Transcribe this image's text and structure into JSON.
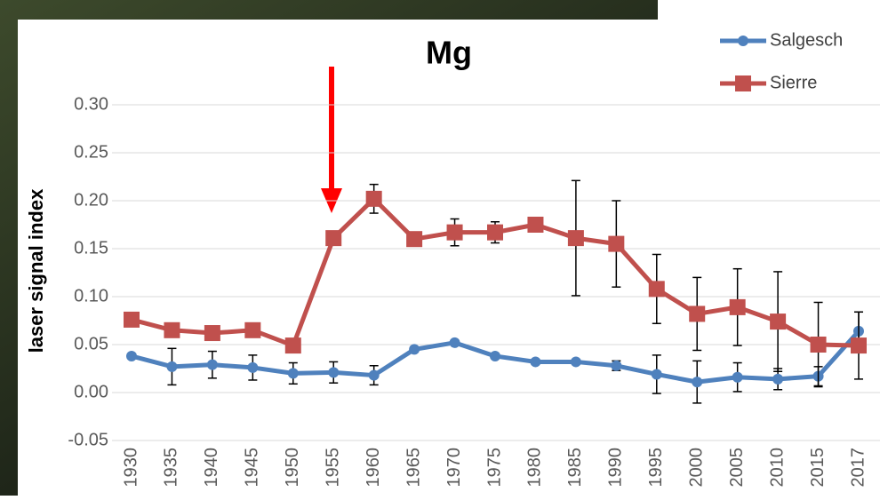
{
  "chart_data": {
    "type": "line",
    "title": "Mg",
    "y_label": "laser signal index",
    "categories": [
      "1930",
      "1935",
      "1940",
      "1945",
      "1950",
      "1955",
      "1960",
      "1965",
      "1970",
      "1975",
      "1980",
      "1985",
      "1990",
      "1995",
      "2000",
      "2005",
      "2010",
      "2015",
      "2017"
    ],
    "series": [
      {
        "name": "Salgesch",
        "color": "#4f81bd",
        "marker": "circle",
        "values": [
          0.038,
          0.027,
          0.029,
          0.026,
          0.02,
          0.021,
          0.018,
          0.045,
          0.052,
          0.038,
          0.032,
          0.032,
          0.028,
          0.019,
          0.011,
          0.016,
          0.014,
          0.017,
          0.064
        ],
        "errors": [
          null,
          0.019,
          0.014,
          0.013,
          0.011,
          0.011,
          0.01,
          null,
          null,
          null,
          null,
          null,
          0.005,
          0.02,
          0.022,
          0.015,
          0.011,
          0.01,
          0.02
        ]
      },
      {
        "name": "Sierre",
        "color": "#c0504d",
        "marker": "square",
        "values": [
          0.076,
          0.065,
          0.062,
          0.065,
          0.049,
          0.161,
          0.202,
          0.16,
          0.167,
          0.167,
          0.175,
          0.161,
          0.155,
          0.108,
          0.082,
          0.089,
          0.074,
          0.05,
          0.049
        ],
        "errors": [
          null,
          null,
          null,
          null,
          null,
          null,
          0.015,
          null,
          0.014,
          0.011,
          null,
          0.06,
          0.045,
          0.036,
          0.038,
          0.04,
          0.052,
          0.044,
          0.035
        ]
      }
    ],
    "ylim": [
      -0.05,
      0.3
    ],
    "yticks": [
      {
        "value": -0.05,
        "label": "-0.05"
      },
      {
        "value": 0,
        "label": "0.00"
      },
      {
        "value": 0.05,
        "label": "0.05"
      },
      {
        "value": 0.1,
        "label": "0.10"
      },
      {
        "value": 0.15,
        "label": "0.15"
      },
      {
        "value": 0.2,
        "label": "0.20"
      },
      {
        "value": 0.25,
        "label": "0.25"
      },
      {
        "value": 0.3,
        "label": "0.30"
      }
    ],
    "grid": true,
    "legend": "top-right"
  }
}
